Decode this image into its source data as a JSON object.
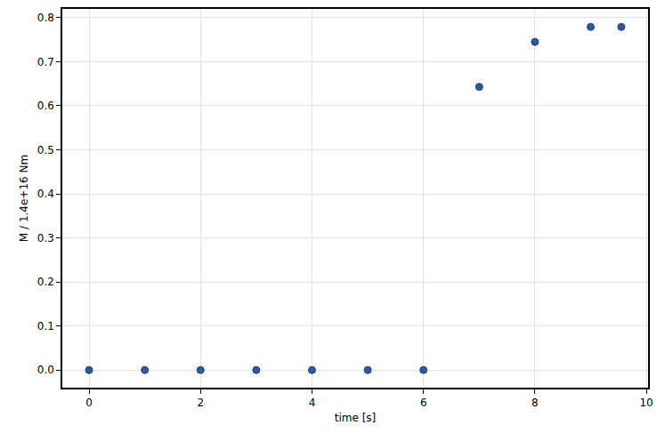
{
  "chart_data": {
    "type": "scatter",
    "x_label": "time [s]",
    "y_label": "M / 1.4e+16 Nm",
    "x": [
      0,
      1,
      2,
      3,
      4,
      5,
      6,
      7,
      8,
      9,
      9.55
    ],
    "values": [
      0,
      0,
      0,
      0,
      0,
      0,
      0,
      0.643,
      0.745,
      0.779,
      0.779
    ],
    "color": "#2c5aa0",
    "marker": "circle",
    "xlim": [
      -0.48,
      10.03
    ],
    "xticks": [
      0,
      2,
      4,
      6,
      8,
      10
    ],
    "ylim": [
      -0.04,
      0.82
    ],
    "yticks": [
      {
        "value": 0,
        "label": "0.0"
      },
      0.1,
      0.2,
      0.3,
      0.4,
      0.5,
      0.6,
      0.7,
      0.8
    ],
    "grid": true
  }
}
